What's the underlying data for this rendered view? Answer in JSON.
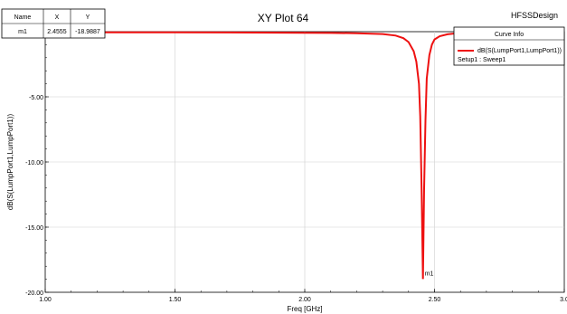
{
  "marker_table": {
    "headers": [
      "Name",
      "X",
      "Y"
    ],
    "rows": [
      [
        "m1",
        "2.4555",
        "-18.9887"
      ]
    ]
  },
  "app_label": "HFSSDesign",
  "legend": {
    "title": "Curve Info",
    "series_label": "dB(S(LumpPort1,LumpPort1))",
    "setup_label": "Setup1 : Sweep1"
  },
  "marker": {
    "label": "m1",
    "x": 2.4555,
    "y": -18.9887
  },
  "colors": {
    "curve": "#ee1111",
    "grid": "#cfcfcf"
  },
  "chart_data": {
    "type": "line",
    "title": "XY Plot 64",
    "xlabel": "Freq [GHz]",
    "ylabel": "dB(S(LumpPort1,LumpPort1))",
    "xlim": [
      1.0,
      3.0
    ],
    "ylim": [
      -20.0,
      0.0
    ],
    "xticks": [
      1.0,
      1.5,
      2.0,
      2.5,
      3.0
    ],
    "xtick_labels": [
      "1.00",
      "1.50",
      "2.00",
      "2.50",
      "3.0"
    ],
    "yticks": [
      -5.0,
      -10.0,
      -15.0,
      -20.0
    ],
    "ytick_labels": [
      "-5.00",
      "-10.00",
      "-15.00",
      "-20.00"
    ],
    "grid": true,
    "legend_position": "top-right",
    "series": [
      {
        "name": "dB(S(LumpPort1,LumpPort1))",
        "x": [
          1.0,
          1.5,
          2.0,
          2.1,
          2.2,
          2.3,
          2.35,
          2.38,
          2.4,
          2.42,
          2.43,
          2.44,
          2.445,
          2.45,
          2.4555,
          2.46,
          2.465,
          2.47,
          2.48,
          2.49,
          2.5,
          2.52,
          2.55,
          2.6,
          2.8,
          3.0
        ],
        "y": [
          -0.05,
          -0.05,
          -0.08,
          -0.1,
          -0.12,
          -0.18,
          -0.3,
          -0.5,
          -0.8,
          -1.5,
          -2.3,
          -4.0,
          -6.5,
          -12.0,
          -18.9887,
          -12.0,
          -6.8,
          -3.6,
          -1.8,
          -1.0,
          -0.6,
          -0.35,
          -0.2,
          -0.1,
          -0.05,
          -0.05
        ]
      }
    ]
  }
}
